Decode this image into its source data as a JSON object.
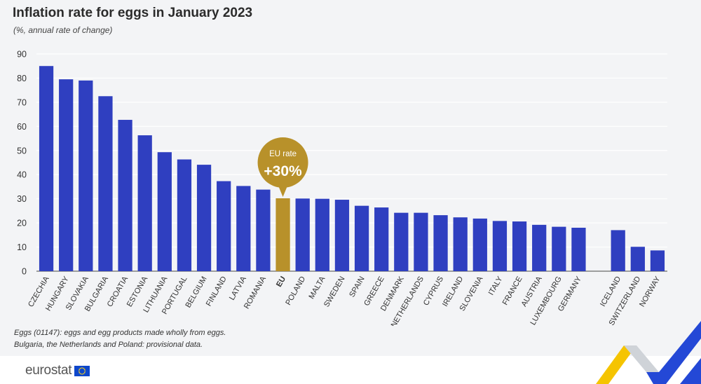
{
  "title": "Inflation rate for eggs in January 2023",
  "subtitle": "(%, annual rate of change)",
  "callout": {
    "label": "EU rate",
    "value": "+30%"
  },
  "notes": [
    "Eggs (01147): eggs and egg products made wholly from eggs.",
    "Bulgaria, the Netherlands and Poland: provisional data."
  ],
  "logo_text": "eurostat",
  "colors": {
    "bar": "#2f3fc0",
    "eu_bar": "#b8912a",
    "callout": "#b8912a",
    "grid": "#ffffff",
    "background": "#f3f4f6"
  },
  "chart_data": {
    "type": "bar",
    "ylim": [
      0,
      90
    ],
    "yticks": [
      0,
      10,
      20,
      30,
      40,
      50,
      60,
      70,
      80,
      90
    ],
    "grid": true,
    "categories": [
      "CZECHIA",
      "HUNGARY",
      "SLOVAKIA",
      "BULGARIA",
      "CROATIA",
      "ESTONIA",
      "LITHUANIA",
      "PORTUGAL",
      "BELGIUM",
      "FINLAND",
      "LATVIA",
      "ROMANIA",
      "EU",
      "POLAND",
      "MALTA",
      "SWEDEN",
      "SPAIN",
      "GREECE",
      "DENMARK",
      "NETHERLANDS",
      "CYPRUS",
      "IRELAND",
      "SLOVENIA",
      "ITALY",
      "FRANCE",
      "AUSTRIA",
      "LUXEMBOURG",
      "GERMANY",
      "",
      "ICELAND",
      "SWITZERLAND",
      "NORWAY"
    ],
    "values": [
      85.0,
      79.5,
      79.0,
      72.5,
      62.7,
      56.3,
      49.3,
      46.3,
      44.1,
      37.3,
      35.3,
      33.8,
      30.2,
      30.1,
      30.0,
      29.6,
      27.1,
      26.4,
      24.2,
      24.2,
      23.2,
      22.3,
      21.8,
      20.8,
      20.6,
      19.2,
      18.4,
      18.0,
      null,
      17.0,
      10.1,
      8.6
    ],
    "highlight": "EU"
  }
}
